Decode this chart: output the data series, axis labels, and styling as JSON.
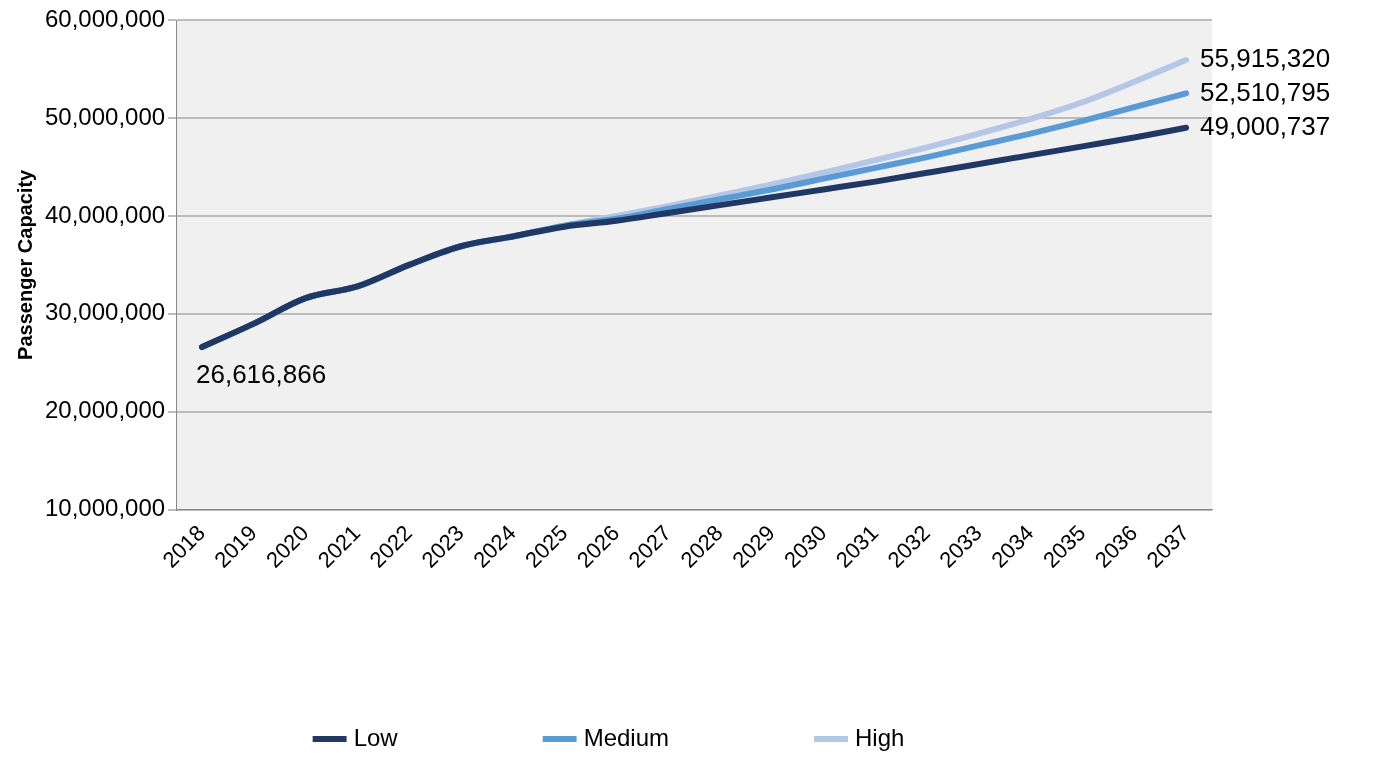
{
  "chart_data": {
    "type": "line",
    "ylabel": "Passenger Capacity",
    "categories": [
      "2018",
      "2019",
      "2020",
      "2021",
      "2022",
      "2023",
      "2024",
      "2025",
      "2026",
      "2027",
      "2028",
      "2029",
      "2030",
      "2031",
      "2032",
      "2033",
      "2034",
      "2035",
      "2036",
      "2037"
    ],
    "series": [
      {
        "name": "Low",
        "color": "#1f3864",
        "values": [
          26616866,
          29000000,
          31600000,
          32800000,
          35000000,
          36900000,
          37900000,
          38900000,
          39500000,
          40300000,
          41100000,
          41900000,
          42700000,
          43500000,
          44400000,
          45300000,
          46200000,
          47100000,
          48000000,
          49000737
        ],
        "value_labels": [
          "26,616,866",
          null,
          null,
          null,
          null,
          null,
          null,
          null,
          null,
          null,
          null,
          null,
          null,
          null,
          null,
          null,
          null,
          null,
          null,
          "49,000,737"
        ]
      },
      {
        "name": "Medium",
        "color": "#5b9bd5",
        "values": [
          26600000,
          29000000,
          31600000,
          32800000,
          35000000,
          36900000,
          37900000,
          39000000,
          39700000,
          40700000,
          41700000,
          42700000,
          43800000,
          44900000,
          46000000,
          47200000,
          48400000,
          49700000,
          51100000,
          52510795
        ],
        "value_labels": [
          null,
          null,
          null,
          null,
          null,
          null,
          null,
          null,
          null,
          null,
          null,
          null,
          null,
          null,
          null,
          null,
          null,
          null,
          null,
          "52,510,795"
        ]
      },
      {
        "name": "High",
        "color": "#b4c7e7",
        "values": [
          26600000,
          29000000,
          31600000,
          32800000,
          35000000,
          36900000,
          37900000,
          39000000,
          40000000,
          41000000,
          42100000,
          43200000,
          44400000,
          45700000,
          47000000,
          48400000,
          49900000,
          51600000,
          53700000,
          55915320
        ],
        "value_labels": [
          null,
          null,
          null,
          null,
          null,
          null,
          null,
          null,
          null,
          null,
          null,
          null,
          null,
          null,
          null,
          null,
          null,
          null,
          null,
          "55,915,320"
        ]
      }
    ],
    "ylim": [
      10000000,
      60000000
    ],
    "yticks": [
      {
        "value": 10000000,
        "label": "10,000,000"
      },
      {
        "value": 20000000,
        "label": "20,000,000"
      },
      {
        "value": 30000000,
        "label": "30,000,000"
      },
      {
        "value": 40000000,
        "label": "40,000,000"
      },
      {
        "value": 50000000,
        "label": "50,000,000"
      },
      {
        "value": 60000000,
        "label": "60,000,000"
      }
    ],
    "grid": "y",
    "legend": "bottom",
    "marker": "none",
    "line_style": "solid"
  }
}
